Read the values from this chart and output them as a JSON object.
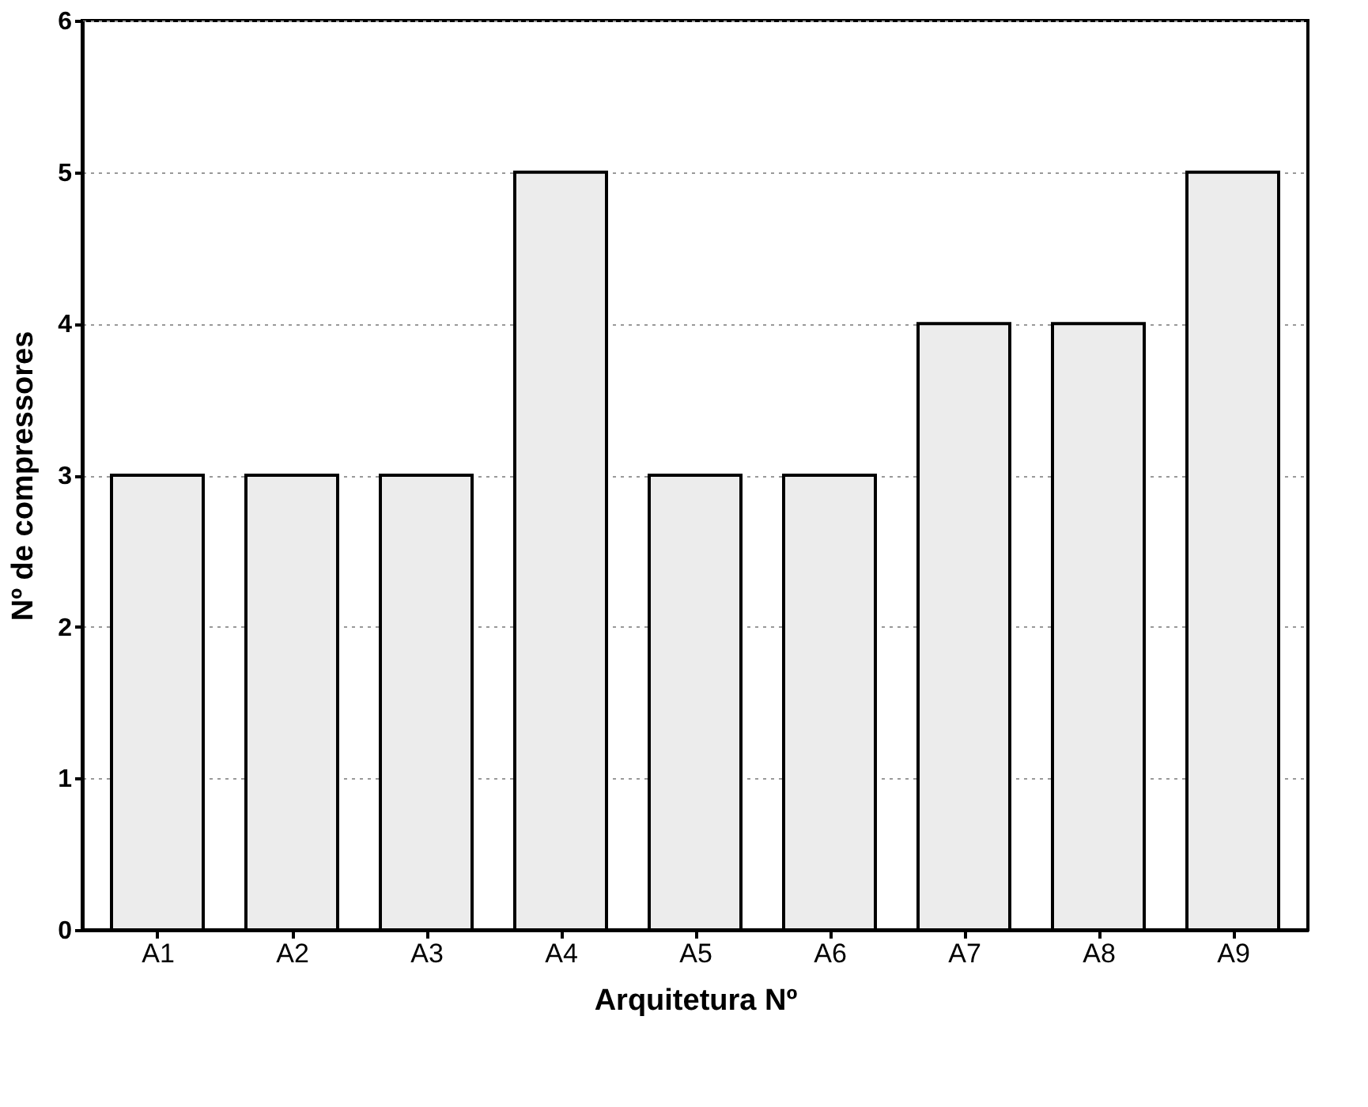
{
  "chart_data": {
    "type": "bar",
    "xlabel": "Arquitetura Nº",
    "ylabel": "Nº de compressores",
    "categories": [
      "A1",
      "A2",
      "A3",
      "A4",
      "A5",
      "A6",
      "A7",
      "A8",
      "A9"
    ],
    "values": [
      3,
      3,
      3,
      5,
      3,
      3,
      4,
      4,
      5
    ],
    "color": "#ececec",
    "ylim": [
      0,
      6
    ],
    "yticks": [
      0,
      1,
      2,
      3,
      4,
      5,
      6
    ],
    "grid": "y"
  }
}
